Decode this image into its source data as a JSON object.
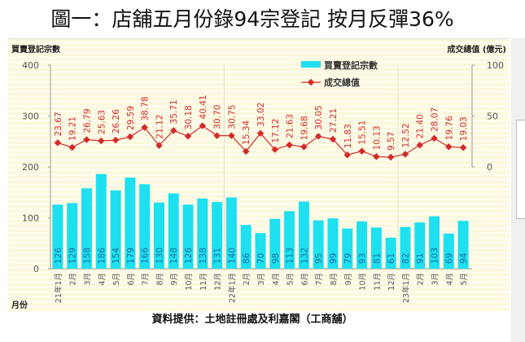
{
  "title": "圖一：店舖五月份錄94宗登記 按月反彈36%",
  "source": "資料提供：土地註冊處及利嘉閣（工商舖）",
  "chart_data": {
    "type": "bar+line",
    "ylabel_left": "買賣登記宗數",
    "ylabel_right": "成交總值 (億元)",
    "xlabel": "月份",
    "ylim_left": [
      0,
      400
    ],
    "left_ticks": [
      "400",
      "300",
      "200",
      "100",
      "0"
    ],
    "ylim_right": [
      -100,
      100
    ],
    "right_ticks": [
      "100",
      "50",
      "0"
    ],
    "legend_position": "top-right",
    "categories": [
      "21年1月",
      "2月",
      "3月",
      "4月",
      "5月",
      "6月",
      "7月",
      "8月",
      "9月",
      "10月",
      "11月",
      "12月",
      "22年1月",
      "2月",
      "3月",
      "4月",
      "5月",
      "6月",
      "7月",
      "8月",
      "9月",
      "10月",
      "11月",
      "12月",
      "23年1月",
      "2月",
      "3月",
      "4月",
      "5月"
    ],
    "series": [
      {
        "name": "買賣登記宗數",
        "type": "bar",
        "axis": "left",
        "color": "#1ee0f0",
        "values": [
          126,
          129,
          158,
          186,
          154,
          179,
          166,
          130,
          148,
          126,
          138,
          131,
          140,
          86,
          70,
          98,
          113,
          132,
          95,
          99,
          79,
          93,
          81,
          61,
          82,
          91,
          103,
          69,
          94
        ]
      },
      {
        "name": "成交總值",
        "type": "line",
        "axis": "right",
        "color": "#d42a2a",
        "values": [
          23.67,
          19.21,
          26.79,
          25.63,
          26.26,
          29.59,
          38.78,
          21.12,
          35.71,
          30.18,
          40.41,
          30.7,
          30.75,
          15.34,
          33.02,
          17.12,
          21.63,
          19.68,
          30.05,
          27.21,
          11.83,
          15.51,
          10.13,
          9.57,
          12.52,
          21.4,
          28.07,
          19.76,
          19.03
        ]
      }
    ]
  }
}
